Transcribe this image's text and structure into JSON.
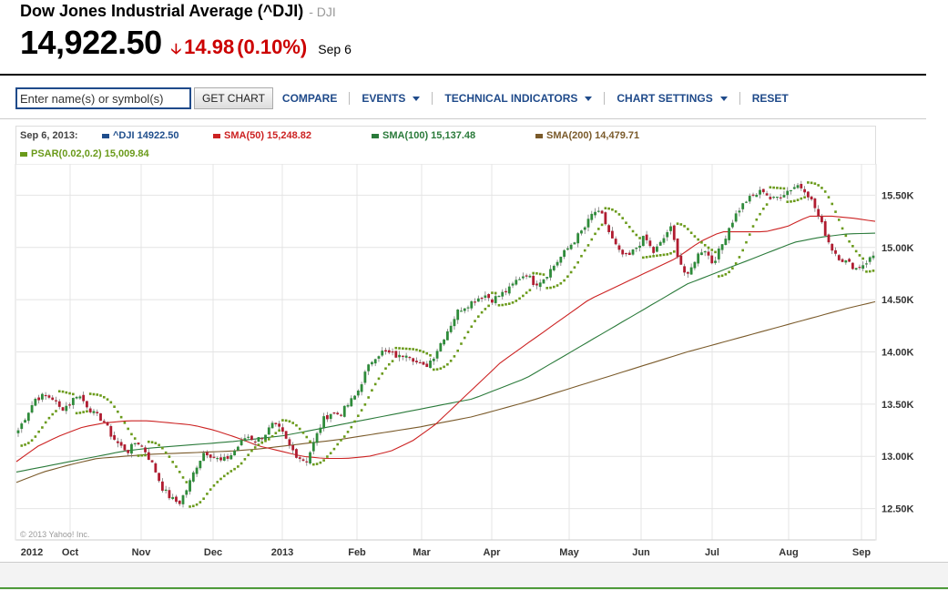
{
  "header": {
    "title": "Dow Jones Industrial Average (^DJI)",
    "symbol_suffix": "- DJI",
    "price": "14,922.50",
    "change": "14.98",
    "change_pct": "(0.10%)",
    "date": "Sep 6"
  },
  "toolbar": {
    "search_placeholder": "Enter name(s) or symbol(s)",
    "get_chart": "GET CHART",
    "compare": "COMPARE",
    "events": "EVENTS",
    "technical_indicators": "TECHNICAL INDICATORS",
    "chart_settings": "CHART SETTINGS",
    "reset": "RESET"
  },
  "legend": {
    "date": "Sep 6, 2013:",
    "items": [
      {
        "label": "^DJI 14922.50",
        "color": "#1f4e8c"
      },
      {
        "label": "SMA(50) 15,248.82",
        "color": "#cc2222"
      },
      {
        "label": "SMA(100) 15,137.48",
        "color": "#2a7a3a"
      },
      {
        "label": "SMA(200) 14,479.71",
        "color": "#7a5a2a"
      },
      {
        "label": "PSAR(0.02,0.2) 15,009.84",
        "color": "#6a9a1a"
      }
    ]
  },
  "colors": {
    "up": "#2e8b3a",
    "down": "#b01c30",
    "psar": "#6a9a1a",
    "sma50": "#cc2222",
    "sma100": "#2a7a3a",
    "sma200": "#7a5a2a"
  },
  "copyright": "© 2013 Yahoo! Inc.",
  "chart_data": {
    "type": "line",
    "x_tick_labels": [
      "2012",
      "Oct",
      "Nov",
      "Dec",
      "2013",
      "Feb",
      "Mar",
      "Apr",
      "May",
      "Jun",
      "Jul",
      "Aug",
      "Sep"
    ],
    "y_tick_labels": [
      "12.50K",
      "13.00K",
      "13.50K",
      "14.00K",
      "14.50K",
      "15.00K",
      "15.50K"
    ],
    "ylim": [
      12200,
      15800
    ],
    "grid": true,
    "price_path": [
      13250,
      13400,
      13550,
      13580,
      13560,
      13450,
      13500,
      13600,
      13500,
      13400,
      13350,
      13200,
      13100,
      13050,
      13150,
      13050,
      12900,
      12700,
      12600,
      12550,
      12700,
      12900,
      13050,
      13000,
      12950,
      13000,
      13100,
      13200,
      13150,
      13200,
      13300,
      13250,
      13100,
      13000,
      12950,
      13150,
      13350,
      13420,
      13400,
      13500,
      13600,
      13800,
      13950,
      14000,
      13980,
      13950,
      14000,
      13900,
      13850,
      13950,
      14100,
      14250,
      14400,
      14450,
      14500,
      14550,
      14500,
      14550,
      14600,
      14700,
      14750,
      14650,
      14700,
      14800,
      14900,
      15000,
      15100,
      15200,
      15350,
      15300,
      15100,
      14950,
      14900,
      15000,
      15100,
      14950,
      15050,
      15200,
      14900,
      14700,
      14900,
      15000,
      14850,
      15000,
      15200,
      15350,
      15450,
      15500,
      15550,
      15450,
      15500,
      15550,
      15600,
      15550,
      15400,
      15200,
      15000,
      14900,
      14850,
      14800,
      14850,
      14922
    ],
    "sma50_path": [
      12950,
      13100,
      13200,
      13280,
      13320,
      13340,
      13340,
      13320,
      13300,
      13250,
      13180,
      13100,
      13050,
      13000,
      12980,
      12980,
      13000,
      13050,
      13150,
      13300,
      13500,
      13700,
      13900,
      14050,
      14200,
      14350,
      14500,
      14600,
      14700,
      14800,
      14900,
      15050,
      15150,
      15150,
      15150,
      15200,
      15300,
      15300,
      15280,
      15250
    ],
    "sma100_path": [
      12850,
      12900,
      12950,
      13000,
      13050,
      13080,
      13100,
      13120,
      13140,
      13170,
      13200,
      13250,
      13300,
      13350,
      13400,
      13450,
      13500,
      13550,
      13650,
      13750,
      13900,
      14050,
      14200,
      14350,
      14500,
      14650,
      14750,
      14850,
      14950,
      15050,
      15100,
      15130,
      15137
    ],
    "sma200_path": [
      12750,
      12850,
      12920,
      12980,
      13000,
      13020,
      13030,
      13040,
      13050,
      13070,
      13100,
      13130,
      13160,
      13200,
      13240,
      13280,
      13330,
      13380,
      13450,
      13520,
      13600,
      13680,
      13760,
      13840,
      13920,
      14000,
      14070,
      14140,
      14210,
      14280,
      14350,
      14420,
      14480
    ]
  }
}
